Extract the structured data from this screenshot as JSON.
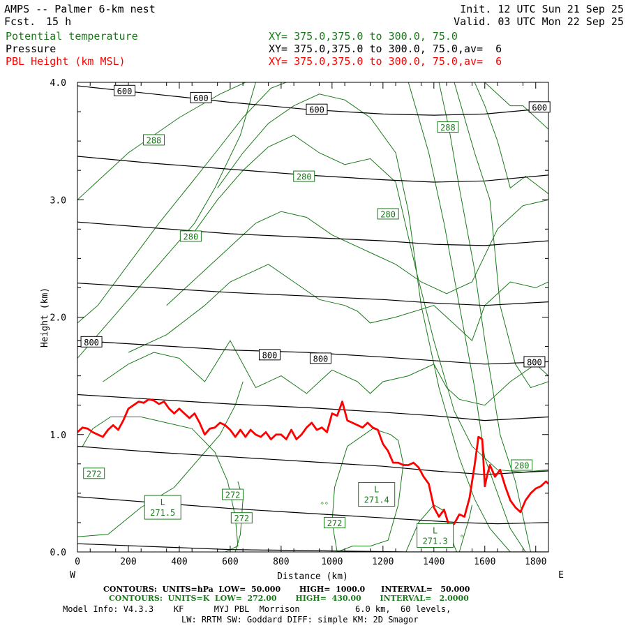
{
  "header": {
    "title": "AMPS -- Palmer 6-km nest",
    "fcst_label": "Fcst.",
    "fcst_value": "15 h",
    "init": "Init. 12 UTC Sun 21 Sep 25",
    "valid": "Valid. 03 UTC Mon 22 Sep 25",
    "fields": [
      {
        "name": "Potential temperature",
        "xy": "XY= 375.0,375.0 to 300.0, 75.0",
        "color": "#1a7a1a"
      },
      {
        "name": "Pressure",
        "xy": "XY= 375.0,375.0 to 300.0, 75.0,av=  6",
        "color": "#000000"
      },
      {
        "name": "PBL Height (km MSL)",
        "xy": "XY= 375.0,375.0 to 300.0, 75.0,av=  6",
        "color": "#ff0000"
      }
    ]
  },
  "chart_data": {
    "type": "line",
    "xlabel": "Distance (km)",
    "ylabel": "Height (km)",
    "xlim": [
      0,
      1850
    ],
    "ylim": [
      0,
      4.0
    ],
    "x_ticks": [
      0,
      200,
      400,
      600,
      800,
      1000,
      1200,
      1400,
      1600,
      1800
    ],
    "y_ticks": [
      0.0,
      1.0,
      2.0,
      3.0,
      4.0
    ],
    "y_tick_labels": [
      "0.0",
      "1.0",
      "2.0",
      "3.0",
      "4.0"
    ],
    "x_end_labels": {
      "left": "W",
      "right": "E"
    },
    "colors": {
      "pressure": "#000000",
      "theta": "#1a7a1a",
      "pbl": "#ff0000"
    },
    "pressure_contours": [
      {
        "x": [
          0,
          600,
          1300,
          1850
        ],
        "y": [
          0.07,
          0.02,
          0.0,
          0.0
        ]
      },
      {
        "x": [
          0,
          300,
          600,
          900,
          1200,
          1500,
          1650,
          1850
        ],
        "y": [
          0.47,
          0.42,
          0.37,
          0.33,
          0.29,
          0.25,
          0.24,
          0.25
        ]
      },
      {
        "x": [
          0,
          300,
          600,
          900,
          1200,
          1400,
          1600,
          1850
        ],
        "y": [
          0.9,
          0.85,
          0.81,
          0.77,
          0.73,
          0.69,
          0.66,
          0.69
        ]
      },
      {
        "x": [
          0,
          300,
          600,
          900,
          1200,
          1400,
          1600,
          1850
        ],
        "y": [
          1.34,
          1.3,
          1.26,
          1.23,
          1.19,
          1.16,
          1.12,
          1.15
        ]
      },
      {
        "x": [
          0,
          300,
          600,
          900,
          1200,
          1400,
          1600,
          1850
        ],
        "y": [
          1.8,
          1.76,
          1.72,
          1.7,
          1.66,
          1.63,
          1.6,
          1.62
        ]
      },
      {
        "x": [
          0,
          300,
          600,
          900,
          1200,
          1400,
          1600,
          1850
        ],
        "y": [
          2.29,
          2.25,
          2.21,
          2.18,
          2.15,
          2.12,
          2.1,
          2.13
        ]
      },
      {
        "x": [
          0,
          300,
          600,
          900,
          1200,
          1400,
          1600,
          1850
        ],
        "y": [
          2.81,
          2.76,
          2.71,
          2.68,
          2.65,
          2.62,
          2.61,
          2.65
        ]
      },
      {
        "x": [
          0,
          300,
          600,
          900,
          1200,
          1400,
          1600,
          1850
        ],
        "y": [
          3.37,
          3.31,
          3.26,
          3.21,
          3.17,
          3.15,
          3.16,
          3.21
        ]
      },
      {
        "x": [
          0,
          300,
          600,
          900,
          1200,
          1400,
          1600,
          1850
        ],
        "y": [
          3.97,
          3.9,
          3.83,
          3.77,
          3.73,
          3.72,
          3.73,
          3.78
        ]
      }
    ],
    "pressure_labels": [
      {
        "text": "600",
        "x": 185,
        "y": 3.93
      },
      {
        "text": "600",
        "x": 485,
        "y": 3.87
      },
      {
        "text": "600",
        "x": 940,
        "y": 3.77
      },
      {
        "text": "600",
        "x": 1815,
        "y": 3.79
      },
      {
        "text": "800",
        "x": 55,
        "y": 1.79
      },
      {
        "text": "800",
        "x": 755,
        "y": 1.68
      },
      {
        "text": "800",
        "x": 955,
        "y": 1.65
      },
      {
        "text": "800",
        "x": 1795,
        "y": 1.62
      }
    ],
    "theta_contours": [
      {
        "x": [
          0,
          120,
          250,
          380,
          480,
          560,
          620,
          650
        ],
        "y": [
          0.13,
          0.15,
          0.38,
          0.55,
          0.8,
          1.0,
          1.25,
          1.45
        ]
      },
      {
        "x": [
          0,
          60,
          160,
          260,
          380,
          460,
          540,
          640,
          700
        ],
        "y": [
          1.65,
          1.8,
          2.05,
          2.3,
          2.6,
          2.8,
          3.1,
          3.55,
          4.0
        ]
      },
      {
        "x": [
          0,
          80,
          200,
          320,
          450,
          560,
          650,
          760,
          820
        ],
        "y": [
          1.95,
          2.1,
          2.45,
          2.8,
          3.15,
          3.45,
          3.7,
          3.95,
          4.0
        ]
      },
      {
        "x": [
          0,
          200,
          400,
          560,
          660,
          720
        ],
        "y": [
          3.0,
          3.4,
          3.7,
          3.9,
          4.0,
          4.0
        ]
      },
      {
        "x": [
          100,
          200,
          300,
          400,
          500,
          600,
          700,
          800,
          900,
          1000,
          1100,
          1150,
          1200,
          1300,
          1400,
          1450,
          1500,
          1600,
          1700,
          1800,
          1850
        ],
        "y": [
          1.45,
          1.6,
          1.7,
          1.65,
          1.45,
          1.8,
          1.4,
          1.5,
          1.35,
          1.55,
          1.45,
          1.35,
          1.45,
          1.5,
          1.6,
          1.4,
          1.3,
          1.25,
          1.45,
          1.6,
          1.5
        ]
      },
      {
        "x": [
          200,
          350,
          500,
          600,
          650,
          750,
          850,
          950,
          1050,
          1100,
          1150,
          1250,
          1400,
          1500,
          1550,
          1600,
          1700,
          1800,
          1850
        ],
        "y": [
          1.7,
          1.85,
          2.1,
          2.3,
          2.35,
          2.45,
          2.3,
          2.15,
          2.1,
          2.05,
          1.95,
          2.0,
          2.1,
          1.9,
          1.8,
          2.1,
          2.3,
          2.25,
          2.3
        ]
      },
      {
        "x": [
          350,
          500,
          600,
          700,
          800,
          900,
          1000,
          1100,
          1150,
          1250,
          1350,
          1450,
          1550,
          1650,
          1750,
          1850
        ],
        "y": [
          2.1,
          2.4,
          2.6,
          2.8,
          2.9,
          2.85,
          2.7,
          2.6,
          2.55,
          2.45,
          2.3,
          2.2,
          2.3,
          2.75,
          2.95,
          3.0
        ]
      },
      {
        "x": [
          450,
          550,
          650,
          750,
          850,
          950,
          1050,
          1150,
          1250,
          1330,
          1400,
          1480,
          1550,
          1650,
          1750,
          1850
        ],
        "y": [
          2.7,
          3.0,
          3.25,
          3.45,
          3.55,
          3.4,
          3.3,
          3.35,
          3.15,
          2.4,
          1.8,
          1.2,
          0.9,
          0.7,
          0.68,
          0.7
        ]
      },
      {
        "x": [
          550,
          650,
          750,
          850,
          950,
          1050,
          1150,
          1250,
          1300,
          1350,
          1420,
          1500,
          1560,
          1620,
          1700
        ],
        "y": [
          3.1,
          3.4,
          3.65,
          3.8,
          3.9,
          3.85,
          3.7,
          3.4,
          2.9,
          2.1,
          1.4,
          0.8,
          0.45,
          0.2,
          0.0
        ]
      },
      {
        "x": [
          1300,
          1380,
          1440,
          1500,
          1560,
          1600,
          1650,
          1700,
          1760
        ],
        "y": [
          4.0,
          3.4,
          2.8,
          2.1,
          1.4,
          0.8,
          0.5,
          0.2,
          0.0
        ]
      },
      {
        "x": [
          1420,
          1460,
          1500,
          1560,
          1600,
          1660,
          1720,
          1780
        ],
        "y": [
          4.0,
          3.6,
          3.1,
          2.4,
          1.8,
          1.0,
          0.6,
          0.0
        ]
      },
      {
        "x": [
          1480,
          1520,
          1560,
          1620,
          1660,
          1720,
          1780,
          1850
        ],
        "y": [
          4.0,
          3.7,
          3.4,
          3.0,
          2.1,
          1.6,
          1.4,
          1.45
        ]
      },
      {
        "x": [
          1560,
          1600,
          1650,
          1700,
          1760,
          1820,
          1850
        ],
        "y": [
          4.0,
          3.8,
          3.5,
          3.1,
          3.2,
          3.1,
          3.05
        ]
      },
      {
        "x": [
          1600,
          1650,
          1700,
          1750,
          1800,
          1850
        ],
        "y": [
          4.0,
          3.9,
          3.8,
          3.8,
          3.7,
          3.6
        ]
      },
      {
        "x": [
          20,
          60,
          130,
          250,
          350,
          450,
          540,
          590,
          620,
          630,
          580,
          500
        ],
        "y": [
          0.9,
          1.05,
          1.15,
          1.15,
          1.1,
          1.05,
          0.85,
          0.6,
          0.3,
          0.05,
          0.0,
          0.0
        ]
      },
      {
        "x": [
          630,
          650,
          640,
          620
        ],
        "y": [
          0.6,
          0.45,
          0.15,
          0.0
        ]
      },
      {
        "x": [
          1020,
          1080,
          1150,
          1220,
          1260,
          1280,
          1260,
          1230,
          1160,
          1060,
          1010,
          1000,
          1020
        ],
        "y": [
          0.0,
          0.05,
          0.05,
          0.1,
          0.4,
          0.75,
          0.95,
          1.0,
          1.05,
          0.9,
          0.55,
          0.25,
          0.0
        ]
      },
      {
        "x": [
          1290,
          1340,
          1400,
          1440,
          1460,
          1480,
          1490
        ],
        "y": [
          0.0,
          0.25,
          0.4,
          0.35,
          0.2,
          0.05,
          0.0
        ]
      },
      {
        "x": [
          1500,
          1520,
          1540,
          1550
        ],
        "y": [
          0.0,
          0.15,
          0.3,
          0.4
        ]
      }
    ],
    "theta_labels": [
      {
        "text": "288",
        "x": 300,
        "y": 3.51
      },
      {
        "text": "280",
        "x": 890,
        "y": 3.2
      },
      {
        "text": "288",
        "x": 1455,
        "y": 3.62
      },
      {
        "text": "280",
        "x": 445,
        "y": 2.69
      },
      {
        "text": "280",
        "x": 1220,
        "y": 2.88
      },
      {
        "text": "280",
        "x": 1745,
        "y": 0.74
      },
      {
        "text": "272",
        "x": 65,
        "y": 0.67
      },
      {
        "text": "272",
        "x": 610,
        "y": 0.49
      },
      {
        "text": "272",
        "x": 645,
        "y": 0.29
      },
      {
        "text": "272",
        "x": 1010,
        "y": 0.25
      }
    ],
    "lows": [
      {
        "letter": "L",
        "value": "271.5",
        "x": 335,
        "y": 0.38
      },
      {
        "letter": "L",
        "value": "271.4",
        "x": 1175,
        "y": 0.49
      },
      {
        "letter": "L",
        "value": "271.3",
        "x": 1405,
        "y": 0.14
      }
    ],
    "small_marks": [
      {
        "text": "°°",
        "x": 970,
        "y": 0.38
      },
      {
        "text": "°",
        "x": 1510,
        "y": 0.1
      }
    ],
    "pbl_height": {
      "name": "PBL Height",
      "x": [
        0,
        20,
        40,
        60,
        80,
        100,
        120,
        140,
        160,
        180,
        200,
        220,
        240,
        260,
        280,
        300,
        320,
        340,
        360,
        380,
        400,
        420,
        440,
        460,
        480,
        500,
        520,
        540,
        560,
        580,
        600,
        620,
        640,
        660,
        680,
        700,
        720,
        740,
        760,
        780,
        800,
        820,
        840,
        860,
        880,
        900,
        920,
        940,
        960,
        980,
        1000,
        1020,
        1040,
        1060,
        1080,
        1100,
        1120,
        1140,
        1160,
        1180,
        1200,
        1220,
        1240,
        1260,
        1280,
        1300,
        1320,
        1340,
        1360,
        1380,
        1400,
        1420,
        1440,
        1460,
        1480,
        1500,
        1520,
        1540,
        1560,
        1575,
        1590,
        1600,
        1610,
        1620,
        1640,
        1660,
        1680,
        1700,
        1720,
        1740,
        1760,
        1780,
        1800,
        1820,
        1840,
        1850
      ],
      "y": [
        1.02,
        1.06,
        1.05,
        1.02,
        1.0,
        0.98,
        1.04,
        1.08,
        1.04,
        1.12,
        1.22,
        1.25,
        1.28,
        1.27,
        1.3,
        1.29,
        1.26,
        1.28,
        1.22,
        1.18,
        1.22,
        1.18,
        1.14,
        1.18,
        1.1,
        1.0,
        1.05,
        1.06,
        1.1,
        1.08,
        1.04,
        0.98,
        1.04,
        0.98,
        1.04,
        1.0,
        0.98,
        1.02,
        0.96,
        1.0,
        1.0,
        0.96,
        1.04,
        0.96,
        1.0,
        1.06,
        1.1,
        1.04,
        1.06,
        1.02,
        1.18,
        1.16,
        1.28,
        1.12,
        1.1,
        1.08,
        1.06,
        1.1,
        1.06,
        1.04,
        0.92,
        0.86,
        0.76,
        0.76,
        0.74,
        0.74,
        0.76,
        0.72,
        0.64,
        0.58,
        0.38,
        0.3,
        0.36,
        0.22,
        0.24,
        0.32,
        0.3,
        0.46,
        0.74,
        0.98,
        0.96,
        0.56,
        0.66,
        0.74,
        0.64,
        0.7,
        0.56,
        0.44,
        0.38,
        0.34,
        0.44,
        0.5,
        0.54,
        0.56,
        0.6,
        0.58
      ]
    }
  },
  "footer": {
    "pressure_contours": "CONTOURS:  UNITS=hPa  LOW=  50.000       HIGH=  1000.0      INTERVAL=   50.000",
    "theta_contours": "CONTOURS:  UNITS=K  LOW=  272.00       HIGH=  430.00       INTERVAL=   2.0000",
    "model_info": "Model Info: V4.3.3    KF      MYJ PBL  Morrison           6.0 km,  60 levels,",
    "model_info2": "LW: RRTM SW: Goddard DIFF: simple KM: 2D Smagor"
  }
}
